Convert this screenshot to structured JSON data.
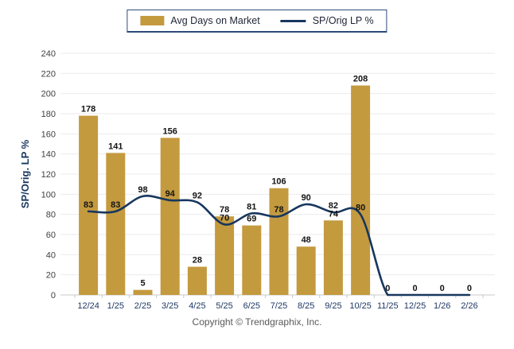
{
  "legend": {
    "items": [
      {
        "label": "Avg Days on Market",
        "type": "bar",
        "color": "#C49A3F"
      },
      {
        "label": "SP/Orig LP %",
        "type": "line",
        "color": "#17375E"
      }
    ]
  },
  "footer": {
    "copyright": "Copyright © Trendgraphix, Inc."
  },
  "chart_data": {
    "type": "bar",
    "subtype": "bar+line combo",
    "categories": [
      "12/24",
      "1/25",
      "2/25",
      "3/25",
      "4/25",
      "5/25",
      "6/25",
      "7/25",
      "8/25",
      "9/25",
      "10/25",
      "11/25",
      "12/25",
      "1/26",
      "2/26"
    ],
    "series": [
      {
        "name": "Avg Days on Market",
        "type": "bar",
        "color": "#C49A3F",
        "values": [
          178,
          141,
          5,
          156,
          28,
          78,
          69,
          106,
          48,
          74,
          208,
          0,
          0,
          0,
          0
        ]
      },
      {
        "name": "SP/Orig LP %",
        "type": "line",
        "color": "#17375E",
        "values": [
          83,
          83,
          98,
          94,
          92,
          70,
          81,
          78,
          90,
          82,
          80,
          0,
          0,
          0,
          0
        ]
      }
    ],
    "title": "",
    "xlabel": "",
    "ylabel": "SP/Orig. LP %",
    "ylim": [
      0,
      240
    ],
    "ytick_step": 20,
    "grid": true,
    "legend_position": "top",
    "colors": {
      "grid": "#ebebeb",
      "axis": "#c9c9c9",
      "x_tick_label": "#1F3864",
      "y_tick_label": "#404040",
      "data_label": "#141414"
    }
  }
}
